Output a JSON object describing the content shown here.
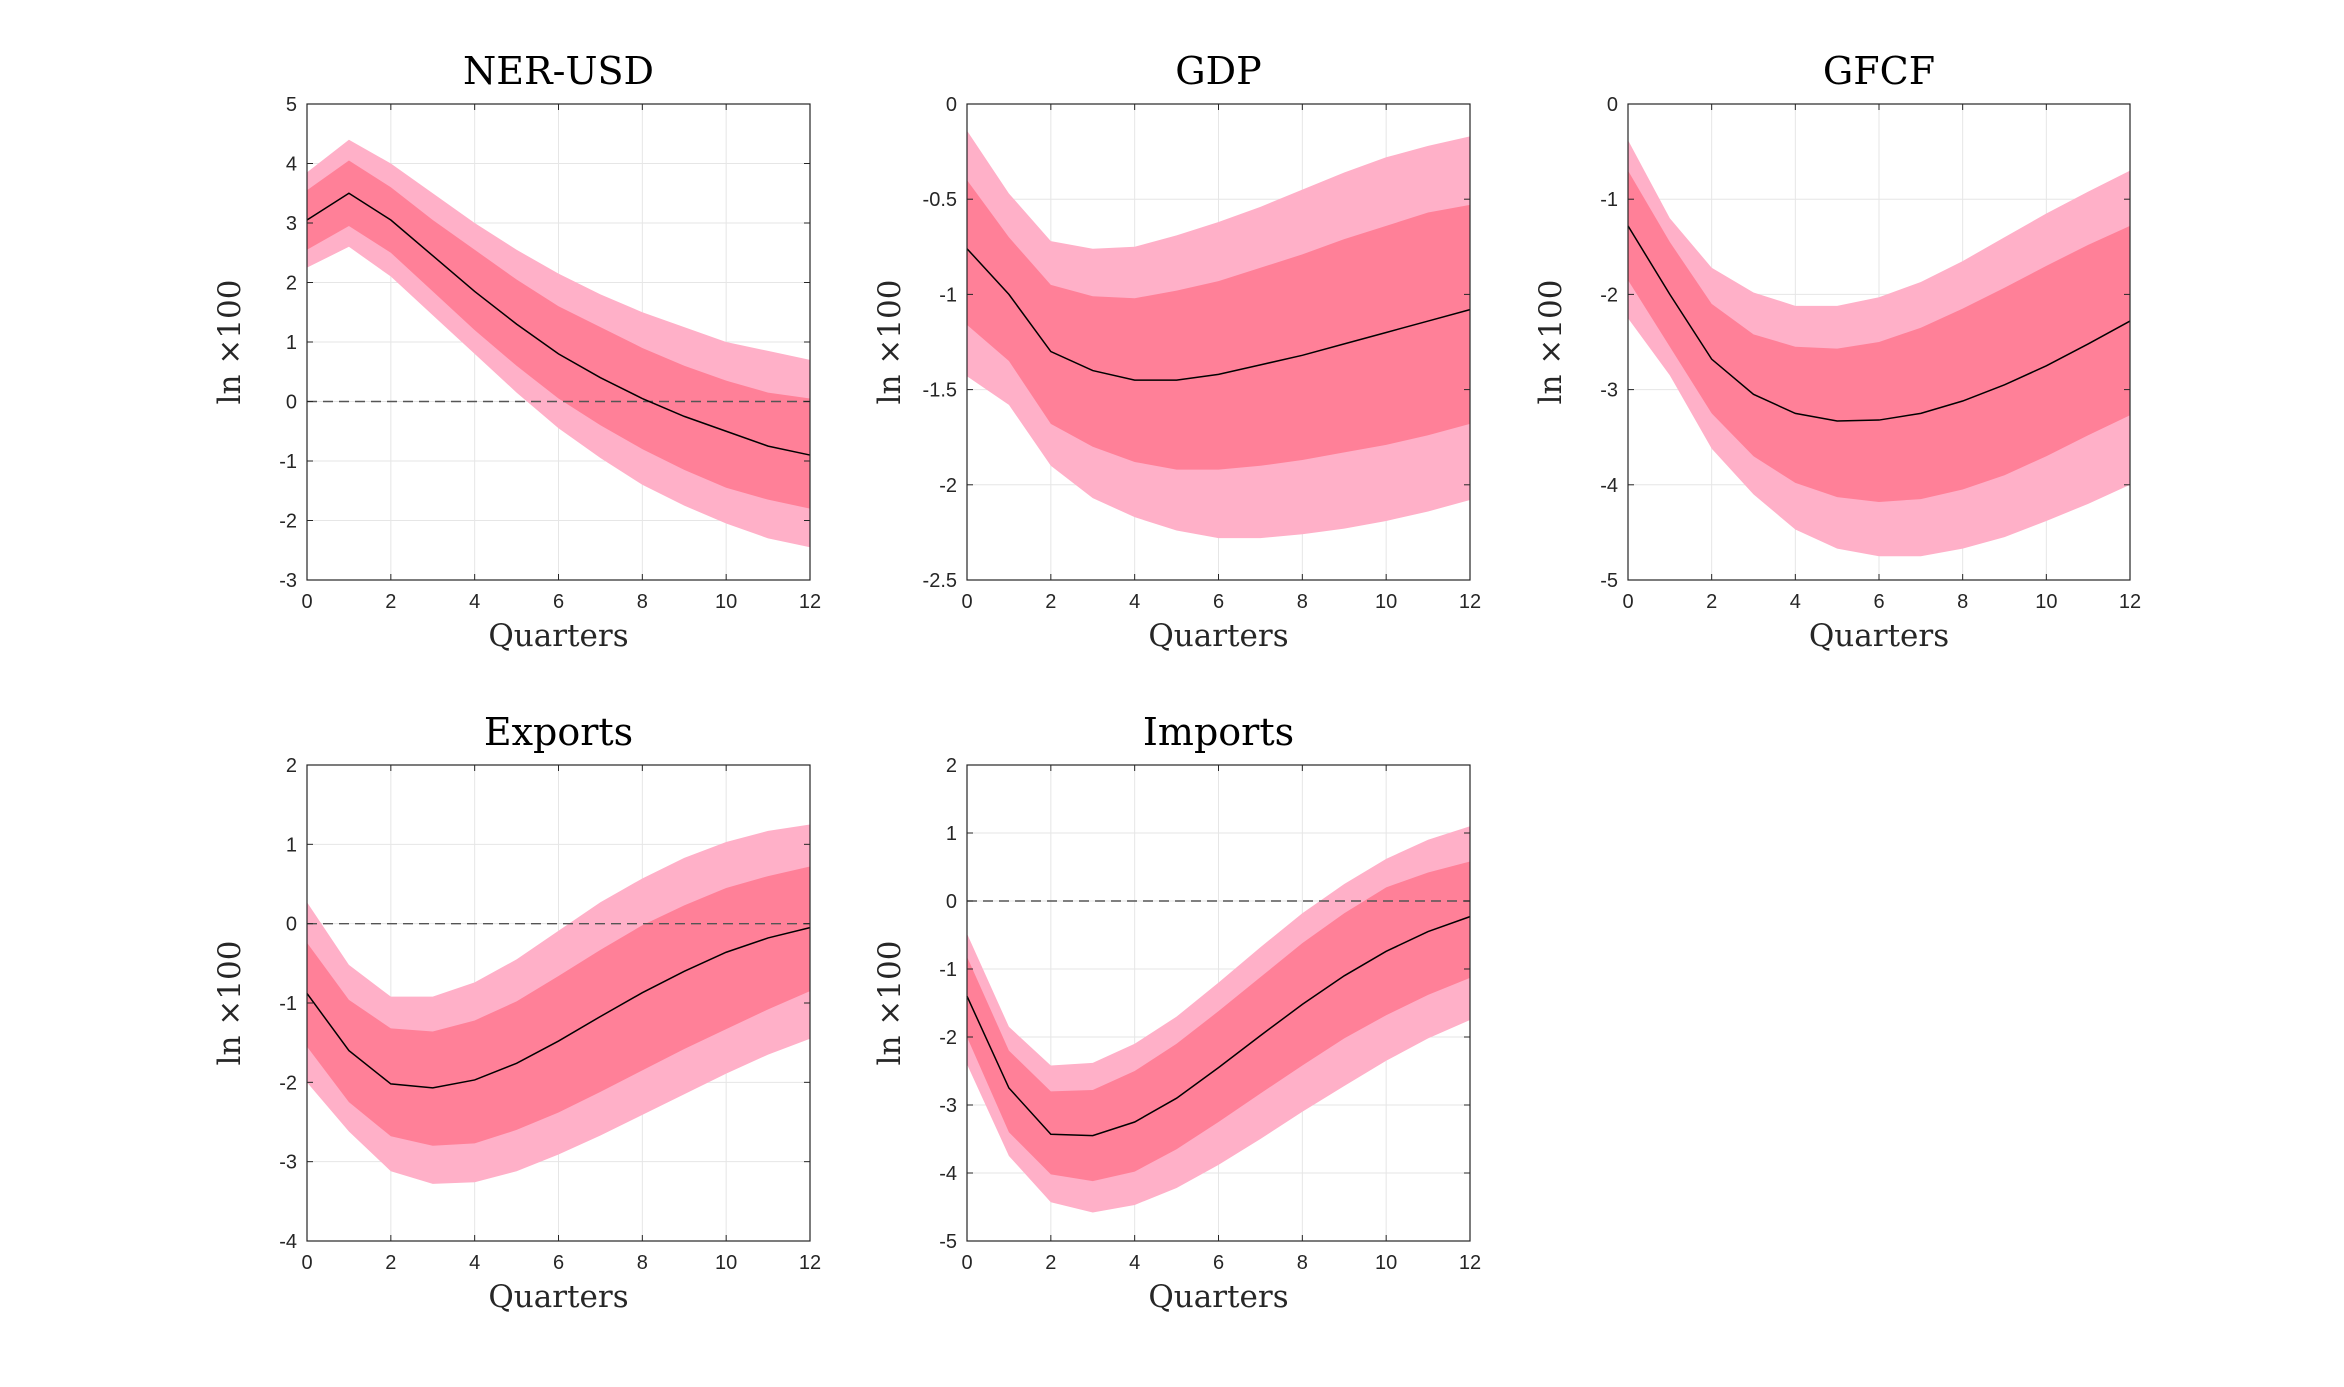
{
  "colors": {
    "band_outer": "#FFB0C8",
    "band_inner": "#FF8098",
    "median_line": "#000000",
    "zero_line": "#555555",
    "grid": "#E6E6E6",
    "axes": "#262626"
  },
  "chart_data": [
    {
      "type": "area",
      "title": "NER-USD",
      "xlabel": "Quarters",
      "ylabel": "ln ×100",
      "xlim": [
        0,
        12
      ],
      "ylim": [
        -3,
        5
      ],
      "xticks": [
        0,
        2,
        4,
        6,
        8,
        10,
        12
      ],
      "yticks": [
        -3,
        -2,
        -1,
        0,
        1,
        2,
        3,
        4,
        5
      ],
      "zero_line": true,
      "x": [
        0,
        1,
        2,
        3,
        4,
        5,
        6,
        7,
        8,
        9,
        10,
        11,
        12
      ],
      "median": [
        3.05,
        3.5,
        3.05,
        2.45,
        1.85,
        1.3,
        0.8,
        0.4,
        0.05,
        -0.25,
        -0.5,
        -0.75,
        -0.9
      ],
      "inner_lower": [
        2.55,
        2.95,
        2.5,
        1.85,
        1.2,
        0.6,
        0.05,
        -0.4,
        -0.8,
        -1.15,
        -1.45,
        -1.65,
        -1.8
      ],
      "inner_upper": [
        3.55,
        4.05,
        3.6,
        3.05,
        2.55,
        2.05,
        1.6,
        1.25,
        0.9,
        0.6,
        0.35,
        0.15,
        0.05
      ],
      "outer_lower": [
        2.25,
        2.6,
        2.1,
        1.45,
        0.8,
        0.15,
        -0.45,
        -0.95,
        -1.4,
        -1.75,
        -2.05,
        -2.3,
        -2.45
      ],
      "outer_upper": [
        3.85,
        4.4,
        4.0,
        3.5,
        3.0,
        2.55,
        2.15,
        1.8,
        1.5,
        1.25,
        1.0,
        0.85,
        0.7
      ]
    },
    {
      "type": "area",
      "title": "GDP",
      "xlabel": "Quarters",
      "ylabel": "ln ×100",
      "xlim": [
        0,
        12
      ],
      "ylim": [
        -2.5,
        0
      ],
      "xticks": [
        0,
        2,
        4,
        6,
        8,
        10,
        12
      ],
      "yticks": [
        -2.5,
        -2,
        -1.5,
        -1,
        -0.5,
        0
      ],
      "zero_line": false,
      "x": [
        0,
        1,
        2,
        3,
        4,
        5,
        6,
        7,
        8,
        9,
        10,
        11,
        12
      ],
      "median": [
        -0.76,
        -1.0,
        -1.3,
        -1.4,
        -1.45,
        -1.45,
        -1.42,
        -1.37,
        -1.32,
        -1.26,
        -1.2,
        -1.14,
        -1.08
      ],
      "inner_lower": [
        -1.16,
        -1.35,
        -1.68,
        -1.8,
        -1.88,
        -1.92,
        -1.92,
        -1.9,
        -1.87,
        -1.83,
        -1.79,
        -1.74,
        -1.68
      ],
      "inner_upper": [
        -0.4,
        -0.7,
        -0.95,
        -1.01,
        -1.02,
        -0.98,
        -0.93,
        -0.86,
        -0.79,
        -0.71,
        -0.64,
        -0.57,
        -0.53
      ],
      "outer_lower": [
        -1.43,
        -1.58,
        -1.9,
        -2.07,
        -2.17,
        -2.24,
        -2.28,
        -2.28,
        -2.26,
        -2.23,
        -2.19,
        -2.14,
        -2.08
      ],
      "outer_upper": [
        -0.14,
        -0.47,
        -0.72,
        -0.76,
        -0.75,
        -0.69,
        -0.62,
        -0.54,
        -0.45,
        -0.36,
        -0.28,
        -0.22,
        -0.17
      ]
    },
    {
      "type": "area",
      "title": "GFCF",
      "xlabel": "Quarters",
      "ylabel": "ln ×100",
      "xlim": [
        0,
        12
      ],
      "ylim": [
        -5,
        0
      ],
      "xticks": [
        0,
        2,
        4,
        6,
        8,
        10,
        12
      ],
      "yticks": [
        -5,
        -4,
        -3,
        -2,
        -1,
        0
      ],
      "zero_line": false,
      "x": [
        0,
        1,
        2,
        3,
        4,
        5,
        6,
        7,
        8,
        9,
        10,
        11,
        12
      ],
      "median": [
        -1.28,
        -2.0,
        -2.68,
        -3.05,
        -3.25,
        -3.33,
        -3.32,
        -3.25,
        -3.12,
        -2.95,
        -2.75,
        -2.52,
        -2.28
      ],
      "inner_lower": [
        -1.85,
        -2.55,
        -3.25,
        -3.7,
        -3.98,
        -4.13,
        -4.18,
        -4.15,
        -4.05,
        -3.9,
        -3.7,
        -3.48,
        -3.27
      ],
      "inner_upper": [
        -0.7,
        -1.45,
        -2.1,
        -2.42,
        -2.55,
        -2.57,
        -2.5,
        -2.35,
        -2.15,
        -1.93,
        -1.7,
        -1.48,
        -1.28
      ],
      "outer_lower": [
        -2.25,
        -2.85,
        -3.62,
        -4.1,
        -4.47,
        -4.67,
        -4.75,
        -4.75,
        -4.67,
        -4.55,
        -4.38,
        -4.2,
        -4.0
      ],
      "outer_upper": [
        -0.38,
        -1.2,
        -1.72,
        -1.98,
        -2.12,
        -2.12,
        -2.03,
        -1.87,
        -1.65,
        -1.4,
        -1.15,
        -0.92,
        -0.7
      ]
    },
    {
      "type": "area",
      "title": "Exports",
      "xlabel": "Quarters",
      "ylabel": "ln ×100",
      "xlim": [
        0,
        12
      ],
      "ylim": [
        -4,
        2
      ],
      "xticks": [
        0,
        2,
        4,
        6,
        8,
        10,
        12
      ],
      "yticks": [
        -4,
        -3,
        -2,
        -1,
        0,
        1,
        2
      ],
      "zero_line": true,
      "x": [
        0,
        1,
        2,
        3,
        4,
        5,
        6,
        7,
        8,
        9,
        10,
        11,
        12
      ],
      "median": [
        -0.88,
        -1.6,
        -2.02,
        -2.07,
        -1.97,
        -1.76,
        -1.48,
        -1.17,
        -0.87,
        -0.6,
        -0.36,
        -0.18,
        -0.05
      ],
      "inner_lower": [
        -1.55,
        -2.25,
        -2.68,
        -2.8,
        -2.77,
        -2.6,
        -2.38,
        -2.12,
        -1.85,
        -1.58,
        -1.33,
        -1.08,
        -0.85
      ],
      "inner_upper": [
        -0.24,
        -0.96,
        -1.32,
        -1.36,
        -1.22,
        -0.98,
        -0.66,
        -0.33,
        -0.02,
        0.23,
        0.45,
        0.6,
        0.72
      ],
      "outer_lower": [
        -2.0,
        -2.62,
        -3.12,
        -3.28,
        -3.26,
        -3.12,
        -2.91,
        -2.67,
        -2.41,
        -2.15,
        -1.89,
        -1.65,
        -1.45
      ],
      "outer_upper": [
        0.27,
        -0.52,
        -0.92,
        -0.92,
        -0.74,
        -0.45,
        -0.09,
        0.27,
        0.57,
        0.83,
        1.03,
        1.17,
        1.25
      ]
    },
    {
      "type": "area",
      "title": "Imports",
      "xlabel": "Quarters",
      "ylabel": "ln ×100",
      "xlim": [
        0,
        12
      ],
      "ylim": [
        -5,
        2
      ],
      "xticks": [
        0,
        2,
        4,
        6,
        8,
        10,
        12
      ],
      "yticks": [
        -5,
        -4,
        -3,
        -2,
        -1,
        0,
        1,
        2
      ],
      "zero_line": true,
      "x": [
        0,
        1,
        2,
        3,
        4,
        5,
        6,
        7,
        8,
        9,
        10,
        11,
        12
      ],
      "median": [
        -1.4,
        -2.75,
        -3.43,
        -3.45,
        -3.25,
        -2.9,
        -2.45,
        -1.98,
        -1.52,
        -1.1,
        -0.74,
        -0.45,
        -0.23
      ],
      "inner_lower": [
        -2.0,
        -3.4,
        -4.02,
        -4.12,
        -3.98,
        -3.65,
        -3.25,
        -2.83,
        -2.42,
        -2.02,
        -1.68,
        -1.38,
        -1.13
      ],
      "inner_upper": [
        -0.82,
        -2.2,
        -2.8,
        -2.78,
        -2.5,
        -2.1,
        -1.62,
        -1.12,
        -0.62,
        -0.18,
        0.2,
        0.42,
        0.58
      ],
      "outer_lower": [
        -2.4,
        -3.75,
        -4.43,
        -4.58,
        -4.47,
        -4.22,
        -3.88,
        -3.5,
        -3.1,
        -2.72,
        -2.35,
        -2.02,
        -1.75
      ],
      "outer_upper": [
        -0.48,
        -1.85,
        -2.42,
        -2.38,
        -2.1,
        -1.7,
        -1.2,
        -0.68,
        -0.18,
        0.25,
        0.62,
        0.9,
        1.1
      ]
    }
  ]
}
